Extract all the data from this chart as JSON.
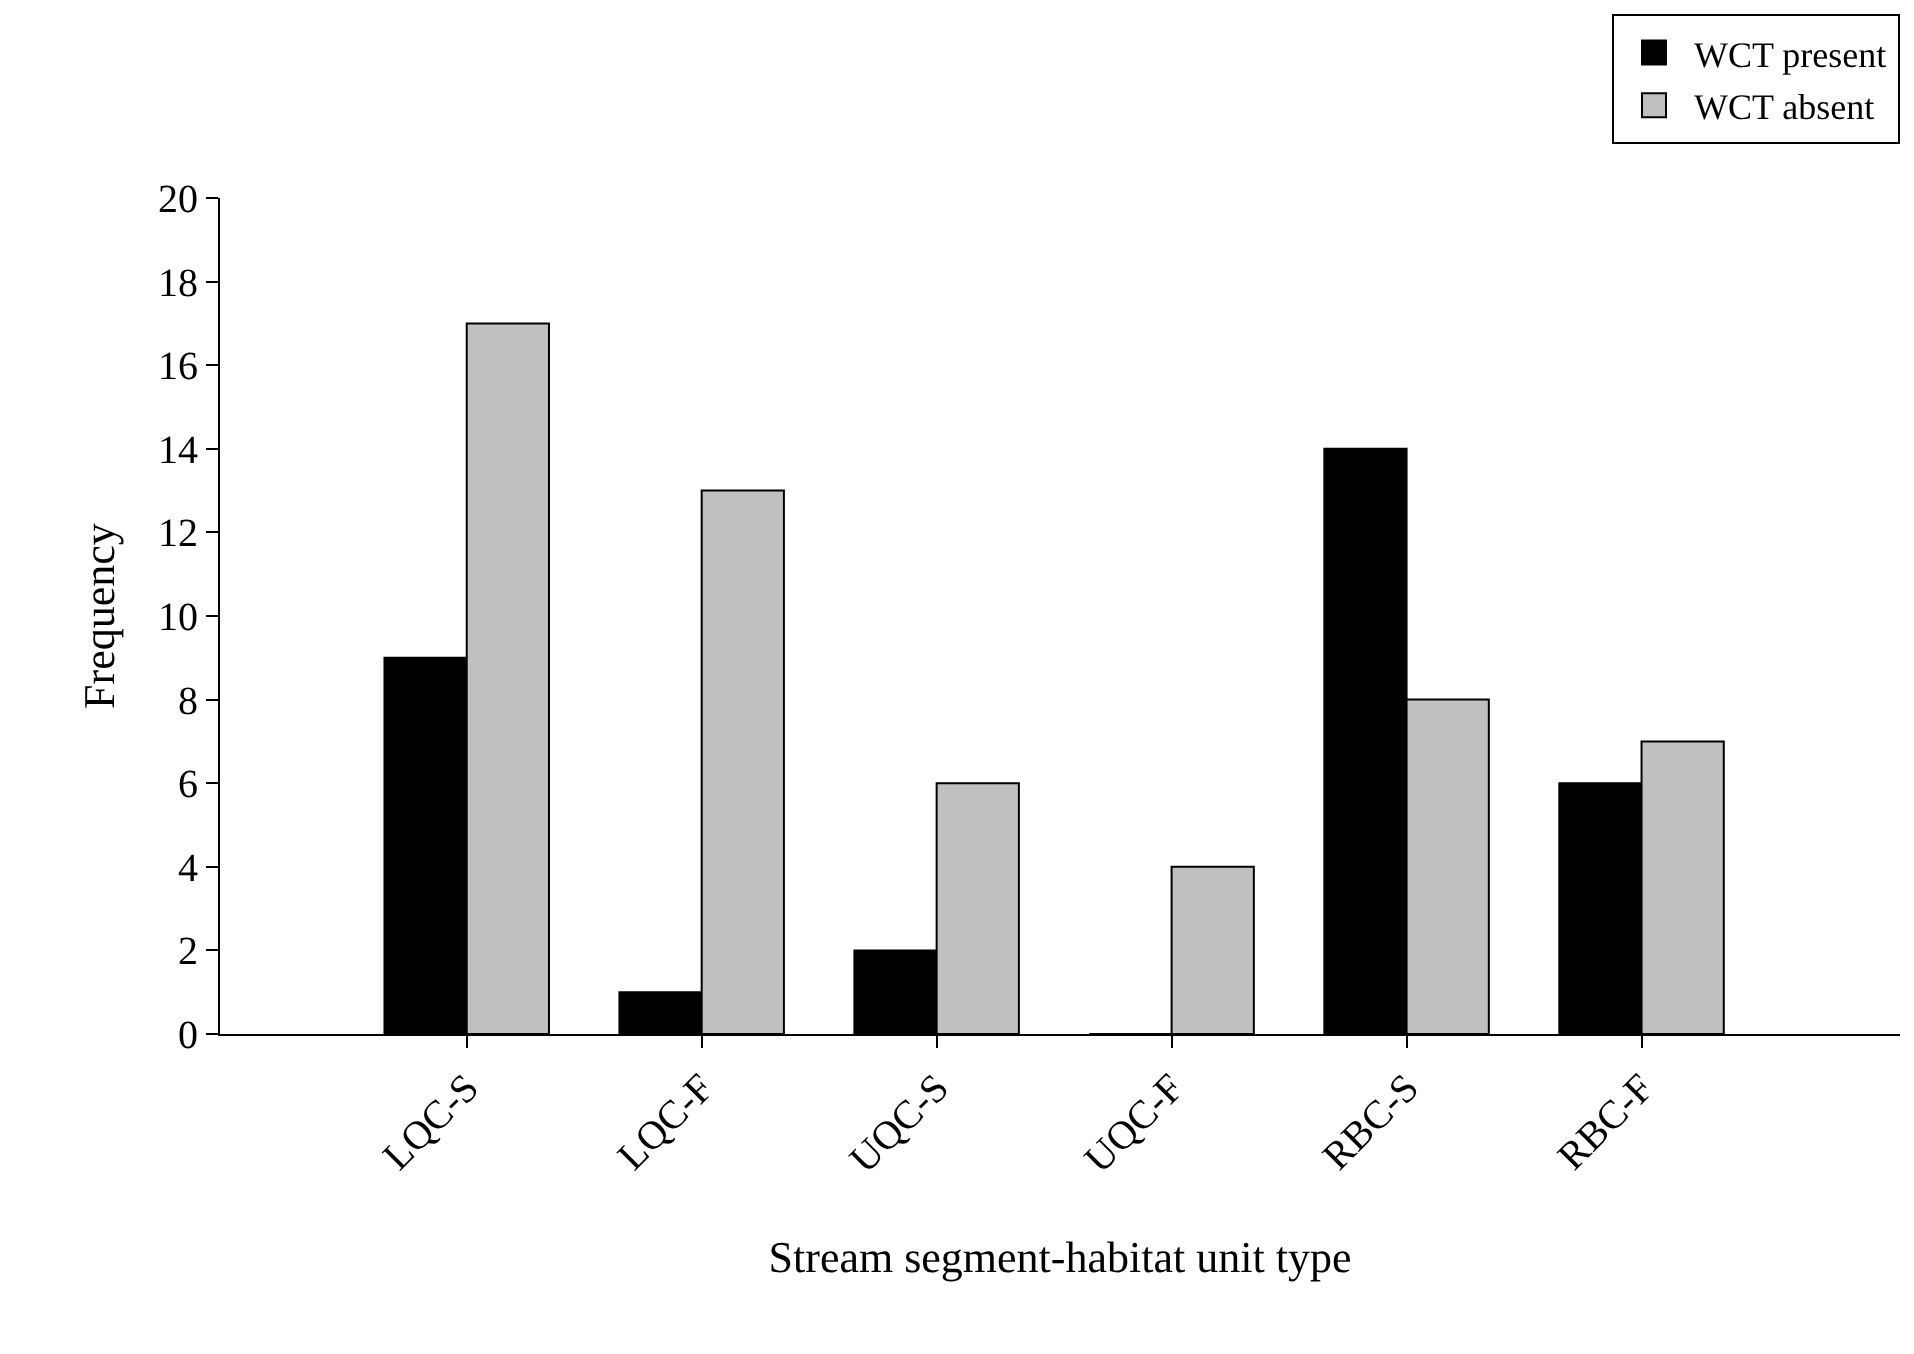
{
  "chart_data": {
    "type": "bar",
    "xlabel": "Stream segment-habitat unit type",
    "ylabel": "Frequency",
    "categories": [
      "LQC-S",
      "LQC-F",
      "UQC-S",
      "UQC-F",
      "RBC-S",
      "RBC-F"
    ],
    "series": [
      {
        "name": "WCT present",
        "color": "#000000",
        "values": [
          9,
          1,
          2,
          0,
          14,
          6
        ]
      },
      {
        "name": "WCT absent",
        "color": "#c0c0c0",
        "values": [
          17,
          13,
          6,
          4,
          8,
          7
        ]
      }
    ],
    "ylim": [
      0,
      20
    ],
    "yticks": [
      0,
      2,
      4,
      6,
      8,
      10,
      12,
      14,
      16,
      18,
      20
    ],
    "legend": "top right"
  }
}
